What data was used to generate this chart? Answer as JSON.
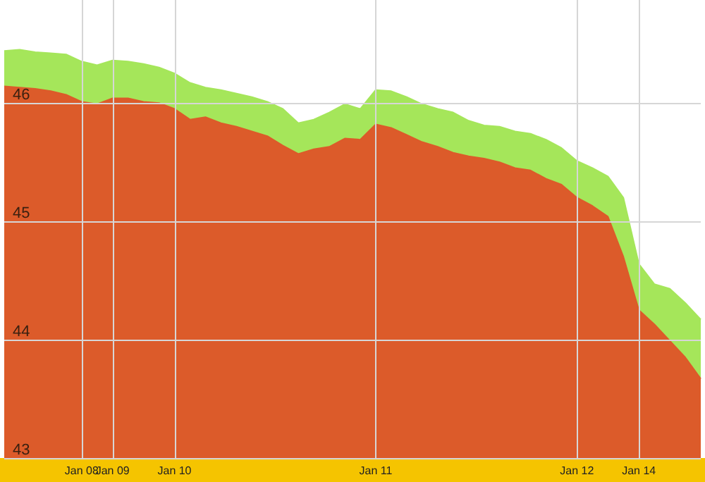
{
  "chart_data": {
    "type": "area",
    "categories": [
      null,
      null,
      null,
      null,
      null,
      "Jan 08",
      null,
      "Jan 09",
      null,
      null,
      null,
      "Jan 10",
      null,
      null,
      null,
      null,
      null,
      null,
      null,
      null,
      null,
      null,
      null,
      null,
      "Jan 11",
      null,
      null,
      null,
      null,
      null,
      null,
      null,
      null,
      null,
      null,
      null,
      null,
      "Jan 12",
      null,
      null,
      null,
      "Jan 14",
      null,
      null,
      null,
      null
    ],
    "series": [
      {
        "color": "#a5e65a",
        "values": [
          46.44,
          46.45,
          46.43,
          46.42,
          46.41,
          46.35,
          46.32,
          46.36,
          46.35,
          46.33,
          46.3,
          46.25,
          46.17,
          46.13,
          46.11,
          46.08,
          46.05,
          46.01,
          45.95,
          45.83,
          45.86,
          45.92,
          45.99,
          45.95,
          46.11,
          46.1,
          46.05,
          45.99,
          45.95,
          45.92,
          45.85,
          45.81,
          45.8,
          45.76,
          45.74,
          45.69,
          45.62,
          45.51,
          45.45,
          45.38,
          45.2,
          44.64,
          44.47,
          44.43,
          44.31,
          44.17
        ]
      },
      {
        "color": "#dc5b2a",
        "values": [
          46.14,
          46.13,
          46.12,
          46.1,
          46.07,
          46.01,
          45.99,
          46.04,
          46.04,
          46.01,
          46.0,
          45.95,
          45.86,
          45.88,
          45.83,
          45.8,
          45.76,
          45.72,
          45.64,
          45.57,
          45.61,
          45.63,
          45.7,
          45.69,
          45.82,
          45.79,
          45.73,
          45.67,
          45.63,
          45.58,
          45.55,
          45.53,
          45.5,
          45.45,
          45.43,
          45.36,
          45.31,
          45.2,
          45.13,
          45.04,
          44.7,
          44.25,
          44.13,
          43.99,
          43.85,
          43.67
        ]
      }
    ],
    "ylim": [
      43,
      46.87
    ],
    "yticks": [
      43,
      44,
      45,
      46
    ],
    "grid": true
  }
}
